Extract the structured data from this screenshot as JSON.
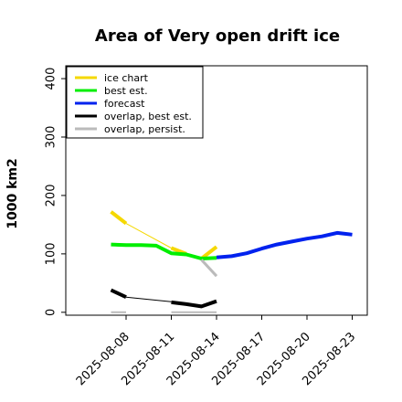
{
  "chart_data": {
    "type": "line",
    "title": "Area of Very open drift ice",
    "ylabel": "1000 km2",
    "xlabel": "",
    "ylim": [
      -5,
      422
    ],
    "yticks": [
      0,
      100,
      200,
      300,
      400
    ],
    "xlim": [
      "2025-08-04",
      "2025-08-24"
    ],
    "xticks": [
      "2025-08-08",
      "2025-08-11",
      "2025-08-14",
      "2025-08-17",
      "2025-08-20",
      "2025-08-23"
    ],
    "xtick_colors": {
      "2025-08-14": "#2e8b2e"
    },
    "grid": false,
    "legend_position": "top-left",
    "series": [
      {
        "name": "ice chart",
        "color": "#f5d800",
        "width": 4,
        "segments": [
          {
            "x": [
              "2025-08-07",
              "2025-08-08"
            ],
            "y": [
              172,
              152
            ]
          },
          {
            "x": [
              "2025-08-08",
              "2025-08-11"
            ],
            "y": [
              152,
              110
            ],
            "width": 1
          },
          {
            "x": [
              "2025-08-11",
              "2025-08-12"
            ],
            "y": [
              110,
              100
            ]
          },
          {
            "x": [
              "2025-08-13",
              "2025-08-14"
            ],
            "y": [
              92,
              112
            ]
          }
        ]
      },
      {
        "name": "best est.",
        "color": "#00ee00",
        "width": 4,
        "segments": [
          {
            "x": [
              "2025-08-07",
              "2025-08-08",
              "2025-08-09",
              "2025-08-10",
              "2025-08-11",
              "2025-08-12",
              "2025-08-13",
              "2025-08-14"
            ],
            "y": [
              116,
              115,
              115,
              114,
              101,
              99,
              92,
              93
            ]
          }
        ]
      },
      {
        "name": "forecast",
        "color": "#0022ee",
        "width": 4,
        "segments": [
          {
            "x": [
              "2025-08-14",
              "2025-08-15",
              "2025-08-16",
              "2025-08-17",
              "2025-08-18",
              "2025-08-19",
              "2025-08-20",
              "2025-08-21",
              "2025-08-22",
              "2025-08-23"
            ],
            "y": [
              94,
              96,
              101,
              109,
              116,
              121,
              126,
              130,
              136,
              133
            ]
          }
        ]
      },
      {
        "name": "overlap, best est.",
        "color": "#000000",
        "width": 4,
        "segments": [
          {
            "x": [
              "2025-08-07",
              "2025-08-08"
            ],
            "y": [
              38,
              26
            ]
          },
          {
            "x": [
              "2025-08-08",
              "2025-08-11"
            ],
            "y": [
              26,
              18
            ],
            "width": 1
          },
          {
            "x": [
              "2025-08-11",
              "2025-08-12",
              "2025-08-13",
              "2025-08-14"
            ],
            "y": [
              17,
              14,
              10,
              19
            ]
          }
        ]
      },
      {
        "name": "overlap, persist.",
        "color": "#bbbbbb",
        "width": 3,
        "segments": [
          {
            "x": [
              "2025-08-13",
              "2025-08-14"
            ],
            "y": [
              90,
              62
            ]
          },
          {
            "x": [
              "2025-08-07",
              "2025-08-08"
            ],
            "y": [
              0,
              0
            ],
            "width": 2
          },
          {
            "x": [
              "2025-08-11",
              "2025-08-14"
            ],
            "y": [
              0,
              0
            ],
            "width": 2
          }
        ]
      }
    ]
  }
}
